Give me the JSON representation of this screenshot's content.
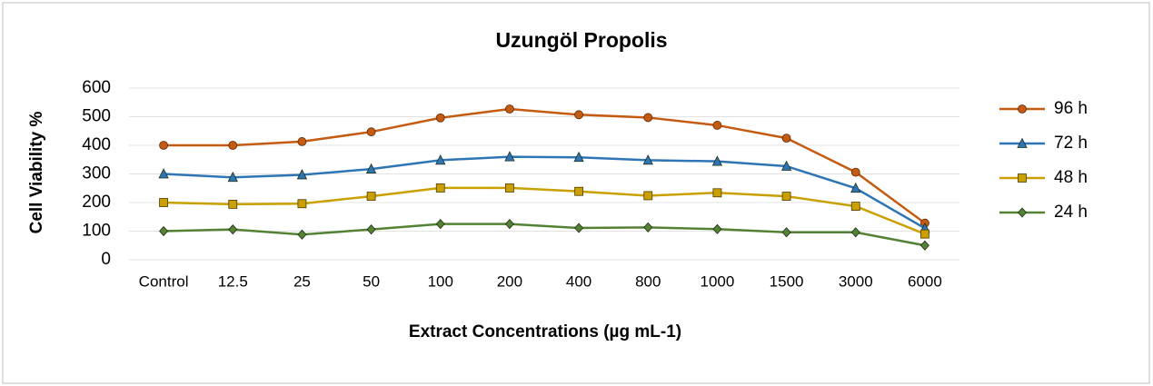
{
  "chart_data": {
    "type": "line",
    "title": "Uzungöl Propolis",
    "xlabel": "Extract Concentrations (µg mL-1)",
    "ylabel": "Cell Viability %",
    "categories": [
      "Control",
      "12.5",
      "25",
      "50",
      "100",
      "200",
      "400",
      "800",
      "1000",
      "1500",
      "3000",
      "6000"
    ],
    "series": [
      {
        "name": "96 h",
        "color": "#c55a11",
        "marker": "circle",
        "values": [
          400,
          400,
          413,
          447,
          496,
          527,
          507,
          497,
          470,
          425,
          306,
          128
        ]
      },
      {
        "name": "72 h",
        "color": "#2e75b6",
        "marker": "triangle",
        "values": [
          300,
          288,
          297,
          317,
          348,
          360,
          358,
          348,
          344,
          327,
          250,
          110
        ]
      },
      {
        "name": "48 h",
        "color": "#c9a000",
        "marker": "square",
        "values": [
          200,
          194,
          196,
          222,
          251,
          251,
          239,
          224,
          234,
          222,
          187,
          90
        ]
      },
      {
        "name": "24 h",
        "color": "#548235",
        "marker": "diamond",
        "values": [
          100,
          106,
          88,
          106,
          125,
          125,
          111,
          113,
          107,
          96,
          96,
          50
        ]
      }
    ],
    "ylim": [
      0,
      600
    ],
    "yticks": [
      0,
      100,
      200,
      300,
      400,
      500,
      600
    ],
    "grid": true,
    "legend": "right"
  }
}
